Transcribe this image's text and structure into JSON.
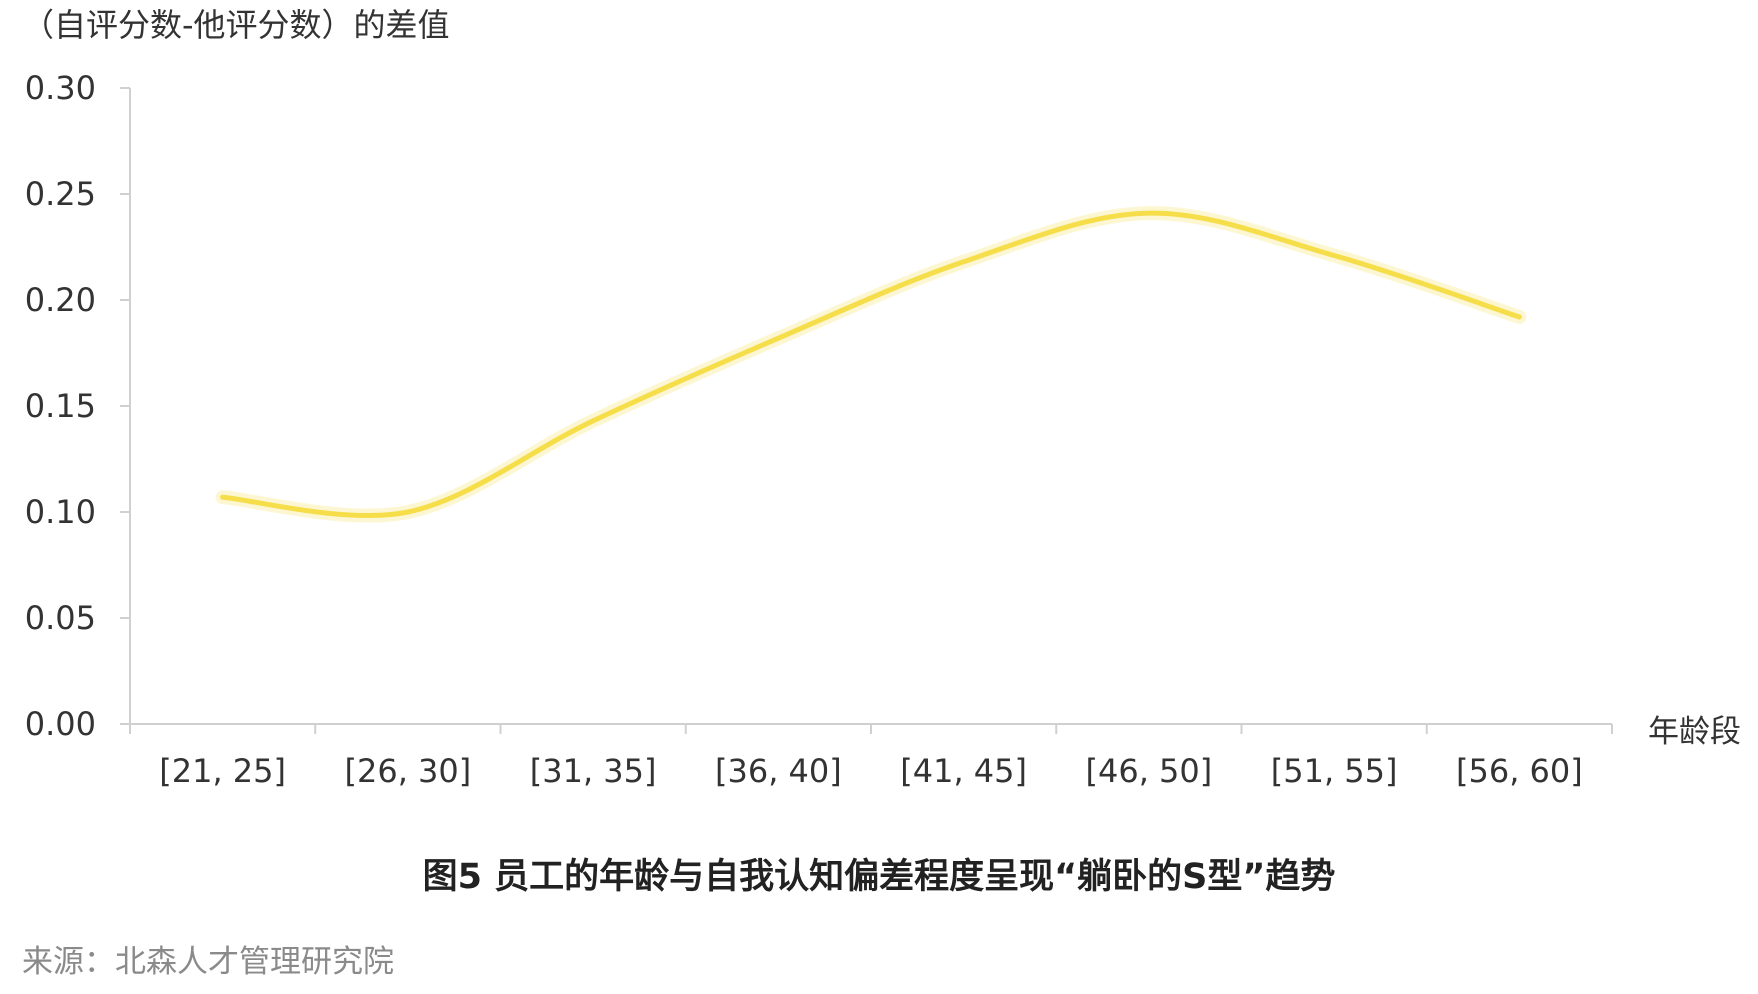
{
  "chart_data": {
    "type": "line",
    "ylabel": "（自评分数-他评分数）的差值",
    "xlabel": "年龄段",
    "title": "图5  员工的年龄与自我认知偏差程度呈现“躺卧的S型”趋势",
    "source": "来源：北森人才管理研究院",
    "categories": [
      "[21, 25]",
      "[26, 30]",
      "[31, 35]",
      "[36, 40]",
      "[41, 45]",
      "[46, 50]",
      "[51, 55]",
      "[56, 60]"
    ],
    "series": [
      {
        "values": [
          0.107,
          0.1,
          0.143,
          0.182,
          0.218,
          0.241,
          0.221,
          0.192
        ]
      }
    ],
    "ylim": [
      0,
      0.3
    ],
    "yticks": [
      "0.00",
      "0.05",
      "0.10",
      "0.15",
      "0.20",
      "0.25",
      "0.30"
    ],
    "grid": false,
    "smooth": true,
    "line_color": "#f5de4a"
  }
}
